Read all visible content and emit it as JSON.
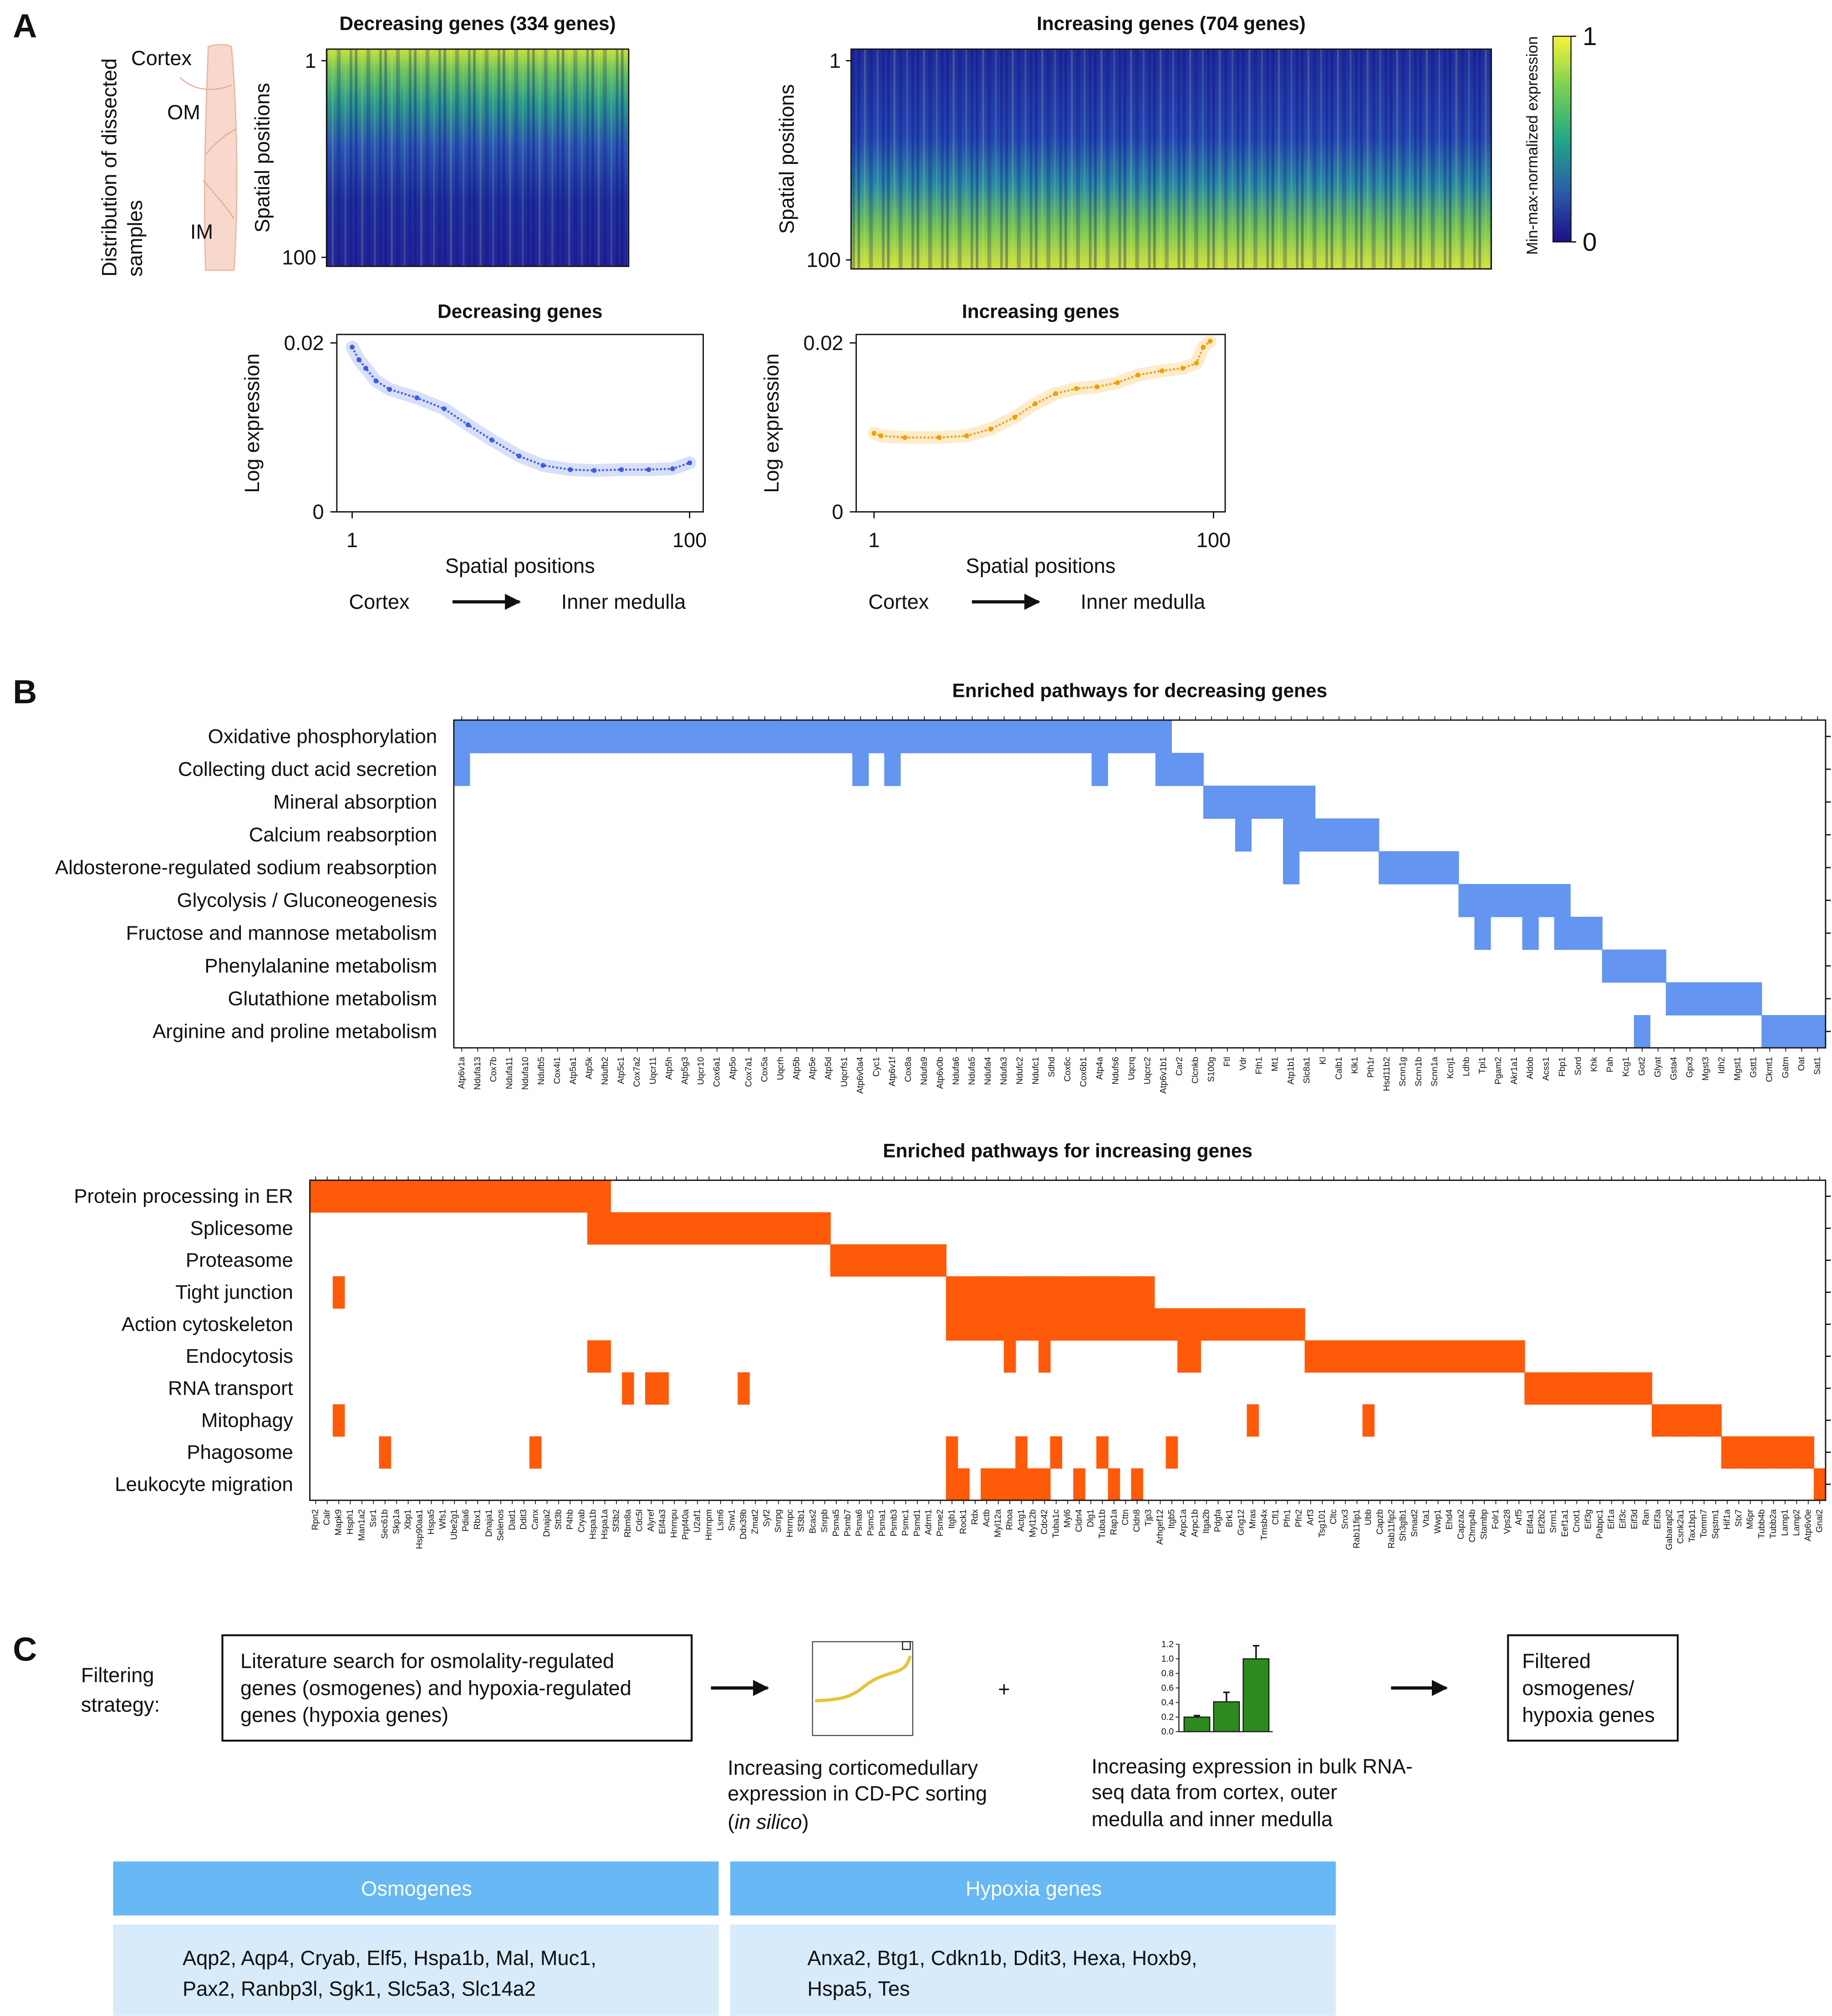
{
  "panel_labels": [
    "A",
    "B",
    "C"
  ],
  "schematic": {
    "title_lines": [
      "Distribution of dissected",
      "samples"
    ],
    "labels": [
      "Cortex",
      "OM",
      "IM"
    ]
  },
  "chart_data": [
    {
      "type": "heatmap",
      "title": "Decreasing genes (334 genes)",
      "ylabel": "Spatial positions",
      "ylim": [
        1,
        100
      ],
      "yticks": [
        1,
        100
      ]
    },
    {
      "type": "heatmap",
      "title": "Increasing genes (704 genes)",
      "ylabel": "Spatial positions",
      "ylim": [
        1,
        100
      ],
      "yticks": [
        1,
        100
      ],
      "colorbar": {
        "label": "Min-max-normalized expression",
        "lim": [
          0,
          1
        ],
        "ticks": [
          0,
          1
        ]
      }
    },
    {
      "type": "line",
      "title": "Decreasing genes",
      "xlabel": "Spatial positions",
      "ylabel": "Log expression",
      "direction_from": "Cortex",
      "direction_to": "Inner medulla",
      "xlim": [
        -3.5,
        104
      ],
      "xticks": [
        1,
        100
      ],
      "ylim": [
        0,
        0.021
      ],
      "yticks": [
        0,
        0.02
      ],
      "color": "#3a5ee0",
      "x": [
        1,
        3,
        5,
        8,
        12,
        20,
        28,
        35,
        42,
        50,
        57,
        65,
        72,
        80,
        88,
        95,
        100
      ],
      "values": [
        0.0195,
        0.018,
        0.017,
        0.0155,
        0.0145,
        0.0135,
        0.0122,
        0.0103,
        0.0085,
        0.0066,
        0.0055,
        0.005,
        0.0049,
        0.005,
        0.005,
        0.0051,
        0.0058
      ]
    },
    {
      "type": "line",
      "title": "Increasing genes",
      "xlabel": "Spatial positions",
      "ylabel": "Log expression",
      "direction_from": "Cortex",
      "direction_to": "Inner medulla",
      "xlim": [
        -4.2,
        103.4
      ],
      "xticks": [
        1,
        100
      ],
      "ylim": [
        0,
        0.021
      ],
      "yticks": [
        0,
        0.02
      ],
      "color": "#f0a000",
      "x": [
        1,
        3,
        10,
        20,
        28,
        35,
        42,
        48,
        54,
        60,
        66,
        72,
        78,
        85,
        91,
        95,
        97,
        99
      ],
      "values": [
        0.0093,
        0.009,
        0.0088,
        0.0088,
        0.009,
        0.0098,
        0.0112,
        0.0128,
        0.014,
        0.0146,
        0.0148,
        0.0153,
        0.0162,
        0.0167,
        0.017,
        0.0176,
        0.0195,
        0.0202
      ]
    },
    {
      "type": "membership",
      "title": "Enriched pathways for decreasing genes",
      "color": "#6495f0",
      "categories": [
        "Atp6v1a",
        "Ndufa13",
        "Cox7b",
        "Ndufa11",
        "Ndufa10",
        "Ndufb5",
        "Cox4i1",
        "Atp5a1",
        "Atp5k",
        "Ndufb2",
        "Atp5c1",
        "Cox7a2",
        "Uqcr11",
        "Atp5h",
        "Atp5g3",
        "Uqcr10",
        "Cox6a1",
        "Atp5o",
        "Cox7a1",
        "Cox5a",
        "Uqcrh",
        "Atp5b",
        "Atp5e",
        "Atp5d",
        "Uqcrfs1",
        "Atp6v0a4",
        "Cyc1",
        "Atp6v1f",
        "Cox8a",
        "Ndufa9",
        "Atp6v0b",
        "Ndufa6",
        "Ndufa5",
        "Ndufa4",
        "Ndufa3",
        "Ndufc2",
        "Ndufc1",
        "Sdhd",
        "Cox6c",
        "Cox6b1",
        "Atp4a",
        "Ndufs6",
        "Uqcrq",
        "Uqcrc2",
        "Atp6v1b1",
        "Car2",
        "Clcnkb",
        "S100g",
        "Ftl",
        "Vdr",
        "Fth1",
        "Mt1",
        "Atp1b1",
        "Slc8a1",
        "Kl",
        "Calb1",
        "Klk1",
        "Pth1r",
        "Hsd11b2",
        "Scnn1g",
        "Scnn1b",
        "Scnn1a",
        "Kcnj1",
        "Ldhb",
        "Tpi1",
        "Pgam2",
        "Akr1a1",
        "Aldob",
        "Acss1",
        "Fbp1",
        "Sord",
        "Khk",
        "Pah",
        "Kcg1",
        "Got2",
        "Glyat",
        "Gsta4",
        "Gpx3",
        "Mgst3",
        "Idh2",
        "Mgst1",
        "Gstt1",
        "Ckmt1",
        "Gatm",
        "Oat",
        "Sat1"
      ],
      "rows": [
        {
          "name": "Oxidative phosphorylation",
          "members": [
            0,
            1,
            2,
            3,
            4,
            5,
            6,
            7,
            8,
            9,
            10,
            11,
            12,
            13,
            14,
            15,
            16,
            17,
            18,
            19,
            20,
            21,
            22,
            23,
            24,
            25,
            26,
            27,
            28,
            29,
            30,
            31,
            32,
            33,
            34,
            35,
            36,
            37,
            38,
            39,
            40,
            41,
            42,
            43,
            44
          ]
        },
        {
          "name": "Collecting duct acid secretion",
          "members": [
            0,
            25,
            27,
            40,
            44,
            45,
            46
          ]
        },
        {
          "name": "Mineral absorption",
          "members": [
            47,
            48,
            49,
            50,
            51,
            52,
            53
          ]
        },
        {
          "name": "Calcium reabsorption",
          "members": [
            49,
            52,
            53,
            54,
            55,
            56,
            57
          ]
        },
        {
          "name": "Aldosterone-regulated sodium reabsorption",
          "members": [
            52,
            58,
            59,
            60,
            61,
            62
          ]
        },
        {
          "name": "Glycolysis / Gluconeogenesis",
          "members": [
            63,
            64,
            65,
            66,
            67,
            68,
            69
          ]
        },
        {
          "name": "Fructose and mannose metabolism",
          "members": [
            64,
            67,
            69,
            70,
            71
          ]
        },
        {
          "name": "Phenylalanine metabolism",
          "members": [
            72,
            73,
            74,
            75
          ]
        },
        {
          "name": "Glutathione metabolism",
          "members": [
            76,
            77,
            78,
            79,
            80,
            81
          ]
        },
        {
          "name": "Arginine and proline metabolism",
          "members": [
            74,
            82,
            83,
            84,
            85
          ]
        }
      ]
    },
    {
      "type": "membership",
      "title": "Enriched pathways for increasing genes",
      "color": "#ff5a0a",
      "categories": [
        "Rpn2",
        "Calr",
        "Mapk9",
        "Hsph1",
        "Man1a2",
        "Ssr1",
        "Sec61b",
        "Skp1a",
        "Xbp1",
        "Hsp90aa1",
        "Hspa5",
        "Wfs1",
        "Ube2g1",
        "Pdia6",
        "Rbx1",
        "Dnaja1",
        "Selenos",
        "Dad1",
        "Ddit3",
        "Canx",
        "Dnaja2",
        "Stt3b",
        "P4hb",
        "Cryab",
        "Hspa1b",
        "Hspa1a",
        "Sf3b2",
        "Rbm8a",
        "Cdc5l",
        "Alyref",
        "Eif4a3",
        "Hnrnpu",
        "Prpf40a",
        "U2af1",
        "Hnrnpm",
        "Lsm6",
        "Snw1",
        "Ddx39b",
        "Zmat2",
        "Syf2",
        "Snrpg",
        "Hnrnpc",
        "Sf3b1",
        "Bcas2",
        "Snrpb",
        "Psma5",
        "Psmb7",
        "Psma6",
        "Psmc5",
        "Psma1",
        "Psmb3",
        "Psmc1",
        "Psmd1",
        "Adrm1",
        "Psme2",
        "Itgb1",
        "Rock1",
        "Rdx",
        "Actb",
        "Myl12a",
        "Rhoa",
        "Actg1",
        "Myl12b",
        "Cdc42",
        "Tuba1c",
        "Myl6",
        "Cldn4",
        "Dlg1",
        "Tuba1b",
        "Rap1a",
        "Cttn",
        "Cldn8",
        "Tjp3",
        "Arhgef12",
        "Itgb5",
        "Arpc1a",
        "Arpc1b",
        "Itga2b",
        "Pdgfa",
        "Brk1",
        "Gng12",
        "Mras",
        "Tmsb4x",
        "Cfl1",
        "Pfn1",
        "Pfn2",
        "Arf3",
        "Tsg101",
        "Cltc",
        "Snx3",
        "Rab11fip1",
        "Ubb",
        "Capzb",
        "Rab11fip2",
        "Sh3glb1",
        "Smad2",
        "Vta1",
        "Wwp1",
        "Ehd4",
        "Capza2",
        "Chmp4b",
        "Stambp",
        "Folr1",
        "Vps28",
        "Arf5",
        "Eif4a1",
        "Eif2b2",
        "Srrm1",
        "Eef1a1",
        "Cnot1",
        "Eif3g",
        "Pabpc1",
        "Eif1a",
        "Eif3c",
        "Eif3d",
        "Ran",
        "Eif3a",
        "Gabarapl2",
        "Csnk2a1",
        "Tax1bp1",
        "Tomm7",
        "Sqstm1",
        "Hif1a",
        "Stx7",
        "M6pr",
        "Tubb4b",
        "Tubb2a",
        "Lamp1",
        "Lamp2",
        "Atp6v0e",
        "Gnai2"
      ],
      "rows": [
        {
          "name": "Protein processing in ER",
          "members": [
            0,
            1,
            2,
            3,
            4,
            5,
            6,
            7,
            8,
            9,
            10,
            11,
            12,
            13,
            14,
            15,
            16,
            17,
            18,
            19,
            20,
            21,
            22,
            23,
            24,
            25
          ]
        },
        {
          "name": "Splicesome",
          "members": [
            24,
            25,
            26,
            27,
            28,
            29,
            30,
            31,
            32,
            33,
            34,
            35,
            36,
            37,
            38,
            39,
            40,
            41,
            42,
            43,
            44
          ]
        },
        {
          "name": "Proteasome",
          "members": [
            45,
            46,
            47,
            48,
            49,
            50,
            51,
            52,
            53,
            54
          ]
        },
        {
          "name": "Tight junction",
          "members": [
            2,
            55,
            56,
            57,
            58,
            59,
            60,
            61,
            62,
            63,
            64,
            65,
            66,
            67,
            68,
            69,
            70,
            71,
            72
          ]
        },
        {
          "name": "Action cytoskeleton",
          "members": [
            55,
            56,
            57,
            58,
            59,
            60,
            61,
            62,
            63,
            64,
            65,
            66,
            67,
            68,
            69,
            70,
            71,
            72,
            73,
            74,
            75,
            76,
            77,
            78,
            79,
            80,
            81,
            82,
            83,
            84,
            85
          ]
        },
        {
          "name": "Endocytosis",
          "members": [
            24,
            25,
            60,
            63,
            75,
            76,
            86,
            87,
            88,
            89,
            90,
            91,
            92,
            93,
            94,
            95,
            96,
            97,
            98,
            99,
            100,
            101,
            102,
            103,
            104
          ]
        },
        {
          "name": "RNA transport",
          "members": [
            27,
            29,
            30,
            37,
            105,
            106,
            107,
            108,
            109,
            110,
            111,
            112,
            113,
            114,
            115
          ]
        },
        {
          "name": "Mitophagy",
          "members": [
            2,
            81,
            91,
            116,
            117,
            118,
            119,
            120,
            121
          ]
        },
        {
          "name": "Phagosome",
          "members": [
            6,
            19,
            55,
            61,
            64,
            68,
            74,
            122,
            123,
            124,
            125,
            126,
            127,
            128,
            129
          ]
        },
        {
          "name": "Leukocyte migration",
          "members": [
            55,
            56,
            58,
            59,
            60,
            61,
            62,
            63,
            66,
            69,
            71,
            130
          ]
        }
      ]
    },
    {
      "type": "bar",
      "color": "#2d8a1e",
      "values": [
        0.2,
        0.41,
        1.0
      ],
      "errors": [
        0.02,
        0.13,
        0.18
      ],
      "ylim": [
        0,
        1.2
      ],
      "yticks": [
        {
          "value": 0,
          "label": "0.0"
        },
        0.2,
        0.4,
        0.6,
        0.8,
        {
          "value": 1,
          "label": "1.0"
        },
        1.2
      ]
    }
  ],
  "filtering": {
    "label_lines": [
      "Filtering",
      "strategy:"
    ],
    "search_lines": [
      "Literature search for osmolality-regulated",
      "genes (osmogenes) and hypoxia-regulated",
      "genes (hypoxia genes)"
    ],
    "caption1_lines": [
      "Increasing corticomedullary",
      "expression in CD-PC sorting"
    ],
    "caption1_last": [
      "(",
      "in silico",
      ")"
    ],
    "plus": "+",
    "caption2_lines": [
      "Increasing expression in bulk RNA-",
      "seq data from cortex, outer",
      "medulla and inner medulla"
    ],
    "result_lines": [
      "Filtered",
      "osmogenes/",
      "hypoxia genes"
    ]
  },
  "table": {
    "headers": [
      "Osmogenes",
      "Hypoxia genes"
    ],
    "cells": [
      [
        "Aqp2, Aqp4, Cryab, Elf5, Hspa1b, Mal, Muc1,",
        "Pax2, Ranbp3l, Sgk1, Slc5a3, Slc14a2"
      ],
      [
        "Anxa2, Btg1, Cdkn1b, Ddit3, Hexa, Hoxb9,",
        "Hspa5, Tes"
      ]
    ]
  }
}
